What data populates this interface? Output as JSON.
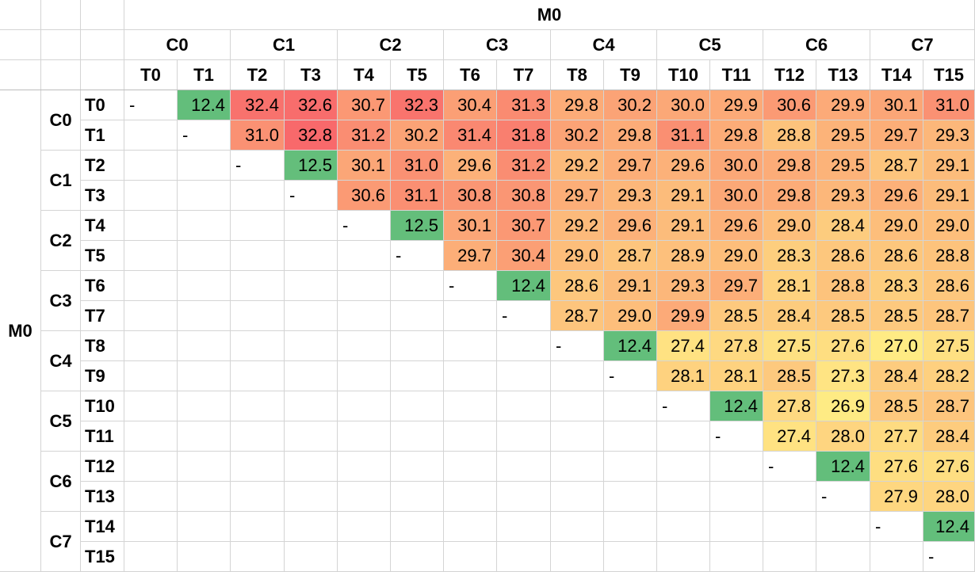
{
  "chart_data": {
    "type": "heatmap",
    "top_header": "M0",
    "left_header": "M0",
    "clusters": [
      "C0",
      "C1",
      "C2",
      "C3",
      "C4",
      "C5",
      "C6",
      "C7"
    ],
    "threads": [
      "T0",
      "T1",
      "T2",
      "T3",
      "T4",
      "T5",
      "T6",
      "T7",
      "T8",
      "T9",
      "T10",
      "T11",
      "T12",
      "T13",
      "T14",
      "T15"
    ],
    "rows": [
      [
        "-",
        12.4,
        32.4,
        32.6,
        30.7,
        32.3,
        30.4,
        31.3,
        29.8,
        30.2,
        30.0,
        29.9,
        30.6,
        29.9,
        30.1,
        31.0
      ],
      [
        null,
        "-",
        31.0,
        32.8,
        31.2,
        30.2,
        31.4,
        31.8,
        30.2,
        29.8,
        31.1,
        29.8,
        28.8,
        29.5,
        29.7,
        29.3
      ],
      [
        null,
        null,
        "-",
        12.5,
        30.1,
        31.0,
        29.6,
        31.2,
        29.2,
        29.7,
        29.6,
        30.0,
        29.8,
        29.5,
        28.7,
        29.1
      ],
      [
        null,
        null,
        null,
        "-",
        30.6,
        31.1,
        30.8,
        30.8,
        29.7,
        29.3,
        29.1,
        30.0,
        29.8,
        29.3,
        29.6,
        29.1
      ],
      [
        null,
        null,
        null,
        null,
        "-",
        12.5,
        30.1,
        30.7,
        29.2,
        29.6,
        29.1,
        29.6,
        29.0,
        28.4,
        29.0,
        29.0
      ],
      [
        null,
        null,
        null,
        null,
        null,
        "-",
        29.7,
        30.4,
        29.0,
        28.7,
        28.9,
        29.0,
        28.3,
        28.6,
        28.6,
        28.8
      ],
      [
        null,
        null,
        null,
        null,
        null,
        null,
        "-",
        12.4,
        28.6,
        29.1,
        29.3,
        29.7,
        28.1,
        28.8,
        28.3,
        28.6
      ],
      [
        null,
        null,
        null,
        null,
        null,
        null,
        null,
        "-",
        28.7,
        29.0,
        29.9,
        28.5,
        28.4,
        28.5,
        28.5,
        28.7
      ],
      [
        null,
        null,
        null,
        null,
        null,
        null,
        null,
        null,
        "-",
        12.4,
        27.4,
        27.8,
        27.5,
        27.6,
        27.0,
        27.5
      ],
      [
        null,
        null,
        null,
        null,
        null,
        null,
        null,
        null,
        null,
        "-",
        28.1,
        28.1,
        28.5,
        27.3,
        28.4,
        28.2
      ],
      [
        null,
        null,
        null,
        null,
        null,
        null,
        null,
        null,
        null,
        null,
        "-",
        12.4,
        27.8,
        26.9,
        28.5,
        28.7
      ],
      [
        null,
        null,
        null,
        null,
        null,
        null,
        null,
        null,
        null,
        null,
        null,
        "-",
        27.4,
        28.0,
        27.7,
        28.4
      ],
      [
        null,
        null,
        null,
        null,
        null,
        null,
        null,
        null,
        null,
        null,
        null,
        null,
        "-",
        12.4,
        27.6,
        27.6
      ],
      [
        null,
        null,
        null,
        null,
        null,
        null,
        null,
        null,
        null,
        null,
        null,
        null,
        null,
        "-",
        27.9,
        28.0
      ],
      [
        null,
        null,
        null,
        null,
        null,
        null,
        null,
        null,
        null,
        null,
        null,
        null,
        null,
        null,
        "-",
        12.4
      ],
      [
        null,
        null,
        null,
        null,
        null,
        null,
        null,
        null,
        null,
        null,
        null,
        null,
        null,
        null,
        null,
        "-"
      ]
    ],
    "color_scale": {
      "low_color": "#63be7b",
      "mid_color": "#ffeb84",
      "high_color": "#f8696b",
      "min": 12.4,
      "mid": 27.0,
      "max": 32.8
    }
  }
}
